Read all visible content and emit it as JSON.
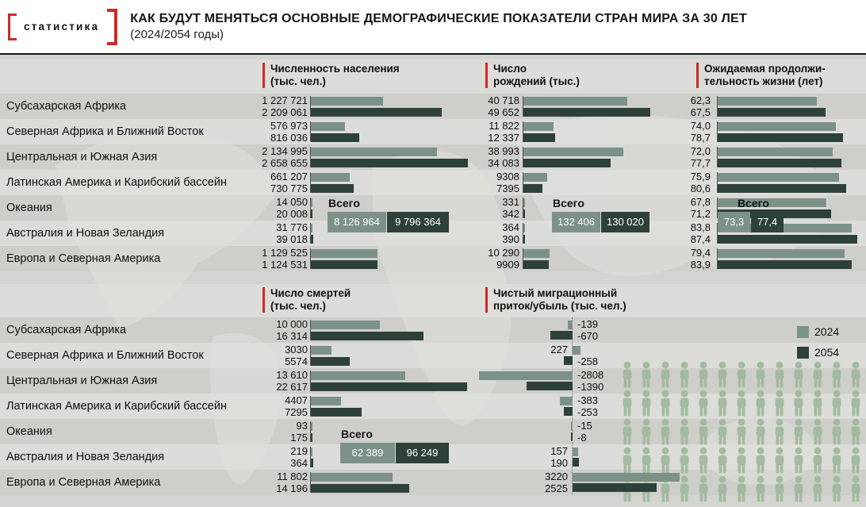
{
  "logo_text": "статистика",
  "title": "КАК БУДУТ МЕНЯТЬСЯ ОСНОВНЫЕ ДЕМОГРАФИЧЕСКИЕ ПОКАЗАТЕЛИ СТРАН МИРА ЗА 30 ЛЕТ",
  "subtitle": "(2024/2054 годы)",
  "total_label": "Всего",
  "legend": {
    "y2024_label": "2024",
    "y2054_label": "2054"
  },
  "colors": {
    "bar_2024": "#7d9287",
    "bar_2054": "#2e4139",
    "accent_red": "#ce2a25",
    "pictogram_green": "#9fb99d"
  },
  "regions": [
    "Субсахарская Африка",
    "Северная Африка и Ближний Восток",
    "Центральная и Южная Азия",
    "Латинская Америка и Карибский бассейн",
    "Океания",
    "Австралия и Новая Зеландия",
    "Европа и Северная Америка"
  ],
  "pictogram_grid": {
    "rows": 5,
    "cols": 13
  },
  "chart_data": [
    {
      "type": "bar",
      "metric": "population",
      "title": "Численность населения (тыс. чел.)",
      "title_lines": [
        "Численность населения",
        "(тыс. чел.)"
      ],
      "series": [
        "2024",
        "2054"
      ],
      "categories": [
        "Субсахарская Африка",
        "Северная Африка и Ближний Восток",
        "Центральная и Южная Азия",
        "Латинская Америка и Карибский бассейн",
        "Океания",
        "Австралия и Новая Зеландия",
        "Европа и Северная Америка"
      ],
      "values_2024": [
        1227721,
        576973,
        2134995,
        661207,
        14050,
        31776,
        1129525
      ],
      "values_2054": [
        2209061,
        816036,
        2658655,
        730775,
        20008,
        39018,
        1124531
      ],
      "display_2024": [
        "1 227 721",
        "576 973",
        "2 134 995",
        "661 207",
        "14 050",
        "31 776",
        "1 129 525"
      ],
      "display_2054": [
        "2 209 061",
        "816 036",
        "2 658 655",
        "730 775",
        "20 008",
        "39 018",
        "1 124 531"
      ],
      "total_2024": "8 126 964",
      "total_2054": "9 796 364"
    },
    {
      "type": "bar",
      "metric": "births",
      "title": "Число рождений (тыс.)",
      "title_lines": [
        "Число",
        "рождений (тыс.)"
      ],
      "series": [
        "2024",
        "2054"
      ],
      "categories": [
        "Субсахарская Африка",
        "Северная Африка и Ближний Восток",
        "Центральная и Южная Азия",
        "Латинская Америка и Карибский бассейн",
        "Океания",
        "Австралия и Новая Зеландия",
        "Европа и Северная Америка"
      ],
      "values_2024": [
        40718,
        11822,
        38993,
        9308,
        331,
        364,
        10290
      ],
      "values_2054": [
        49652,
        12337,
        34083,
        7395,
        342,
        390,
        9909
      ],
      "display_2024": [
        "40 718",
        "11 822",
        "38 993",
        "9308",
        "331",
        "364",
        "10 290"
      ],
      "display_2054": [
        "49 652",
        "12 337",
        "34 083",
        "7395",
        "342",
        "390",
        "9909"
      ],
      "total_2024": "132 406",
      "total_2054": "130 020"
    },
    {
      "type": "bar",
      "metric": "life_expectancy",
      "title": "Ожидаемая продолжительность жизни (лет)",
      "title_lines": [
        "Ожидаемая продолжи-",
        "тельность жизни (лет)"
      ],
      "series": [
        "2024",
        "2054"
      ],
      "categories": [
        "Субсахарская Африка",
        "Северная Африка и Ближний Восток",
        "Центральная и Южная Азия",
        "Латинская Америка и Карибский бассейн",
        "Океания",
        "Австралия и Новая Зеландия",
        "Европа и Северная Америка"
      ],
      "values_2024": [
        62.3,
        74.0,
        72.0,
        75.9,
        67.8,
        83.8,
        79.4
      ],
      "values_2054": [
        67.5,
        78.7,
        77.7,
        80.6,
        71.2,
        87.4,
        83.9
      ],
      "display_2024": [
        "62,3",
        "74,0",
        "72,0",
        "75,9",
        "67,8",
        "83,8",
        "79,4"
      ],
      "display_2054": [
        "67,5",
        "78,7",
        "77,7",
        "80,6",
        "71,2",
        "87,4",
        "83,9"
      ],
      "total_2024": "73,3",
      "total_2054": "77,4"
    },
    {
      "type": "bar",
      "metric": "deaths",
      "title": "Число смертей (тыс. чел.)",
      "title_lines": [
        "Число смертей",
        "(тыс. чел.)"
      ],
      "series": [
        "2024",
        "2054"
      ],
      "categories": [
        "Субсахарская Африка",
        "Северная Африка и Ближний Восток",
        "Центральная и Южная Азия",
        "Латинская Америка и Карибский бассейн",
        "Океания",
        "Австралия и Новая Зеландия",
        "Европа и Северная Америка"
      ],
      "values_2024": [
        10000,
        3030,
        13610,
        4407,
        93,
        219,
        11802
      ],
      "values_2054": [
        16314,
        5574,
        22617,
        7295,
        175,
        364,
        14196
      ],
      "display_2024": [
        "10 000",
        "3030",
        "13 610",
        "4407",
        "93",
        "219",
        "11 802"
      ],
      "display_2054": [
        "16 314",
        "5574",
        "22 617",
        "7295",
        "175",
        "364",
        "14 196"
      ],
      "total_2024": "62 389",
      "total_2054": "96 249"
    },
    {
      "type": "bar",
      "metric": "migration",
      "title": "Чистый миграционный приток/убыль (тыс. чел.)",
      "title_lines": [
        "Чистый миграционный",
        "приток/убыль (тыс. чел.)"
      ],
      "series": [
        "2024",
        "2054"
      ],
      "categories": [
        "Субсахарская Африка",
        "Северная Африка и Ближний Восток",
        "Центральная и Южная Азия",
        "Латинская Америка и Карибский бассейн",
        "Океания",
        "Австралия и Новая Зеландия",
        "Европа и Северная Америка"
      ],
      "values_2024": [
        -139,
        227,
        -2808,
        -383,
        -15,
        157,
        3220
      ],
      "values_2054": [
        -670,
        -258,
        -1390,
        -253,
        -8,
        190,
        2525
      ],
      "display_2024": [
        "-139",
        "227",
        "-2808",
        "-383",
        "-15",
        "157",
        "3220"
      ],
      "display_2054": [
        "-670",
        "-258",
        "-1390",
        "-253",
        "-8",
        "190",
        "2525"
      ]
    }
  ]
}
